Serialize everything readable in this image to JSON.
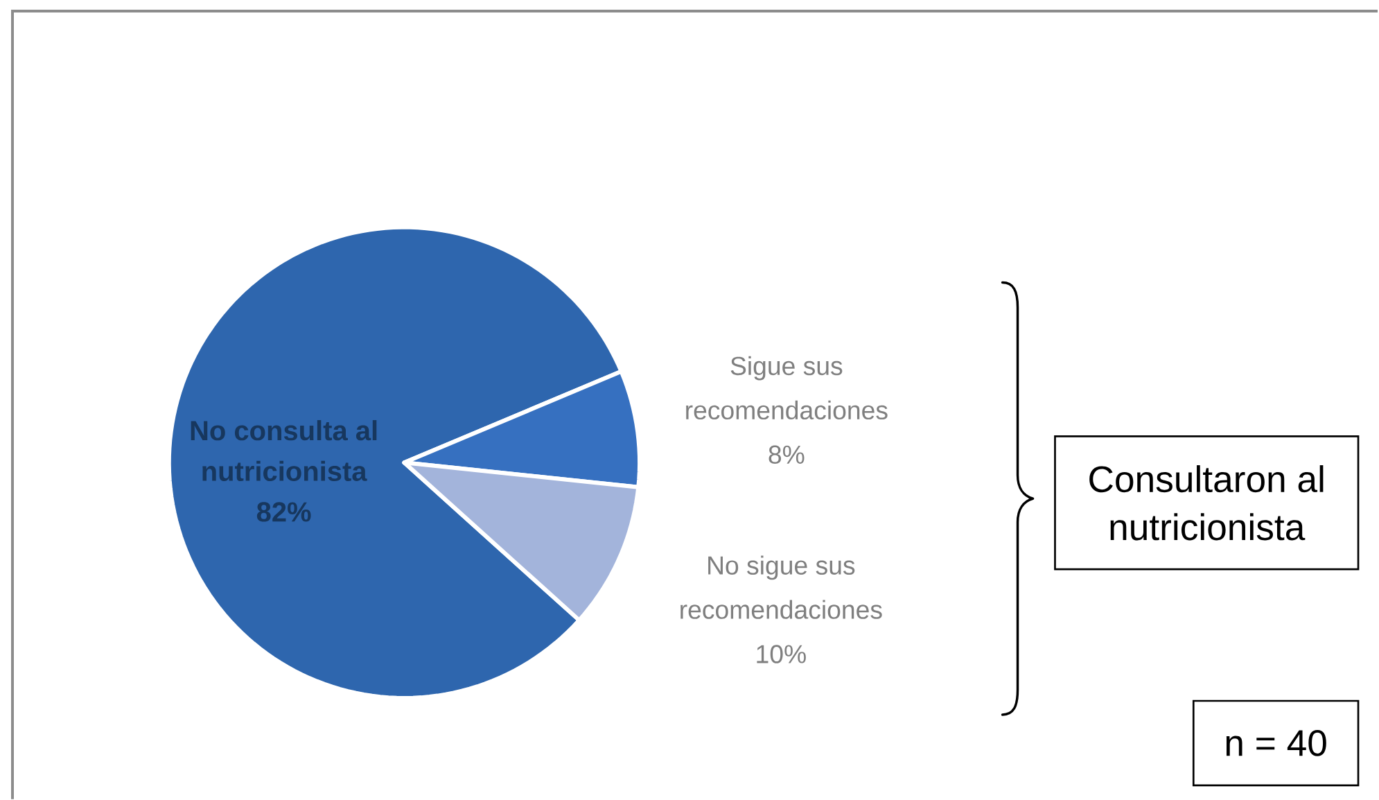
{
  "chart_data": {
    "type": "pie",
    "categories": [
      "No consulta al nutricionista",
      "Sigue sus recomendaciones",
      "No sigue sus recomendaciones"
    ],
    "values": [
      82,
      8,
      10
    ],
    "colors": [
      "#2E66AE",
      "#3670C0",
      "#A3B4DB"
    ],
    "value_labels": [
      "82%",
      "8%",
      "10%"
    ],
    "annotations": [
      "Consultaron al nutricionista",
      "n = 40"
    ]
  }
}
